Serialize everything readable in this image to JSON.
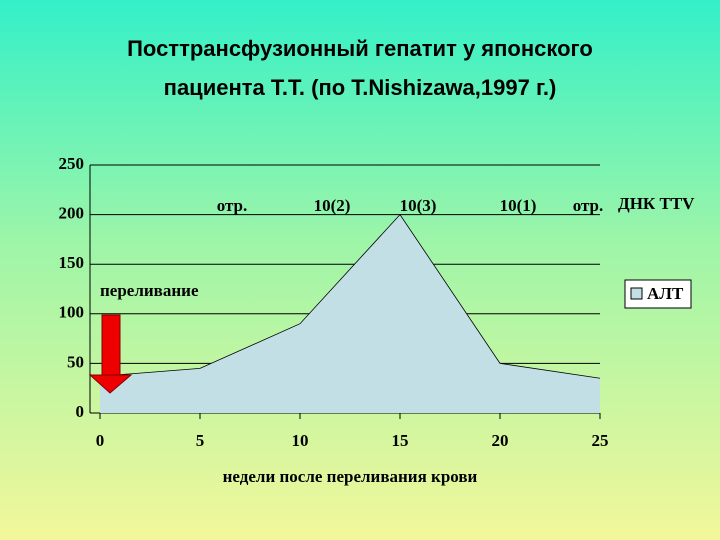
{
  "chart_data": {
    "type": "area",
    "title": [
      "Посттрансфузионный гепатит у японского",
      "пациента Т.Т. (по T.Nishizawa,1997 г.)"
    ],
    "x": [
      0,
      5,
      10,
      15,
      20,
      25
    ],
    "series": [
      {
        "name": "АЛТ",
        "color": "#c1dfe5",
        "values": [
          37,
          45,
          90,
          200,
          50,
          35
        ]
      }
    ],
    "xlim": [
      0,
      25
    ],
    "xticks": [
      0,
      5,
      10,
      15,
      20,
      25
    ],
    "ylim": [
      0,
      250
    ],
    "yticks": [
      0,
      50,
      100,
      150,
      200,
      250
    ],
    "grid": true,
    "legend": "right",
    "xlabel": "недели после переливания крови",
    "annotations": [
      "отр.",
      "10(2)",
      "10(3)",
      "10(1)",
      "отр.",
      "ДНК TTV",
      "переливание"
    ]
  }
}
